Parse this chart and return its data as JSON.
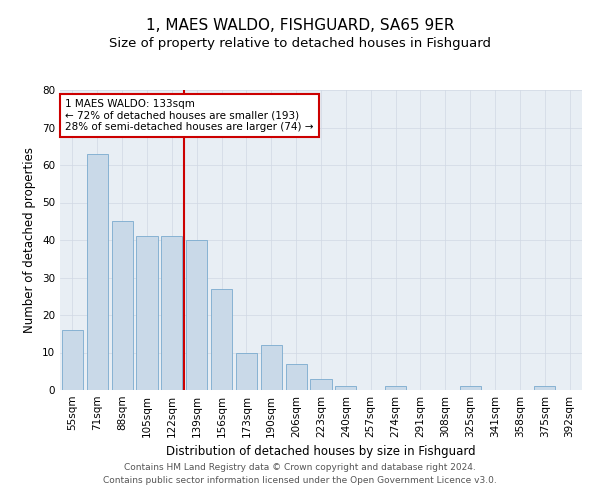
{
  "title": "1, MAES WALDO, FISHGUARD, SA65 9ER",
  "subtitle": "Size of property relative to detached houses in Fishguard",
  "xlabel": "Distribution of detached houses by size in Fishguard",
  "ylabel": "Number of detached properties",
  "categories": [
    "55sqm",
    "71sqm",
    "88sqm",
    "105sqm",
    "122sqm",
    "139sqm",
    "156sqm",
    "173sqm",
    "190sqm",
    "206sqm",
    "223sqm",
    "240sqm",
    "257sqm",
    "274sqm",
    "291sqm",
    "308sqm",
    "325sqm",
    "341sqm",
    "358sqm",
    "375sqm",
    "392sqm"
  ],
  "values": [
    16,
    63,
    45,
    41,
    41,
    40,
    27,
    10,
    12,
    7,
    3,
    1,
    0,
    1,
    0,
    0,
    1,
    0,
    0,
    1,
    0
  ],
  "bar_color": "#c9d9e8",
  "bar_edge_color": "#7aaace",
  "grid_color": "#d0d8e4",
  "vline_x": 4.5,
  "vline_color": "#cc0000",
  "annotation_line1": "1 MAES WALDO: 133sqm",
  "annotation_line2": "← 72% of detached houses are smaller (193)",
  "annotation_line3": "28% of semi-detached houses are larger (74) →",
  "annotation_box_color": "#cc0000",
  "ylim": [
    0,
    80
  ],
  "yticks": [
    0,
    10,
    20,
    30,
    40,
    50,
    60,
    70,
    80
  ],
  "bg_color": "#e8eef4",
  "footer_line1": "Contains HM Land Registry data © Crown copyright and database right 2024.",
  "footer_line2": "Contains public sector information licensed under the Open Government Licence v3.0.",
  "title_fontsize": 11,
  "subtitle_fontsize": 9.5,
  "axis_label_fontsize": 8.5,
  "tick_fontsize": 7.5,
  "annotation_fontsize": 7.5,
  "footer_fontsize": 6.5
}
